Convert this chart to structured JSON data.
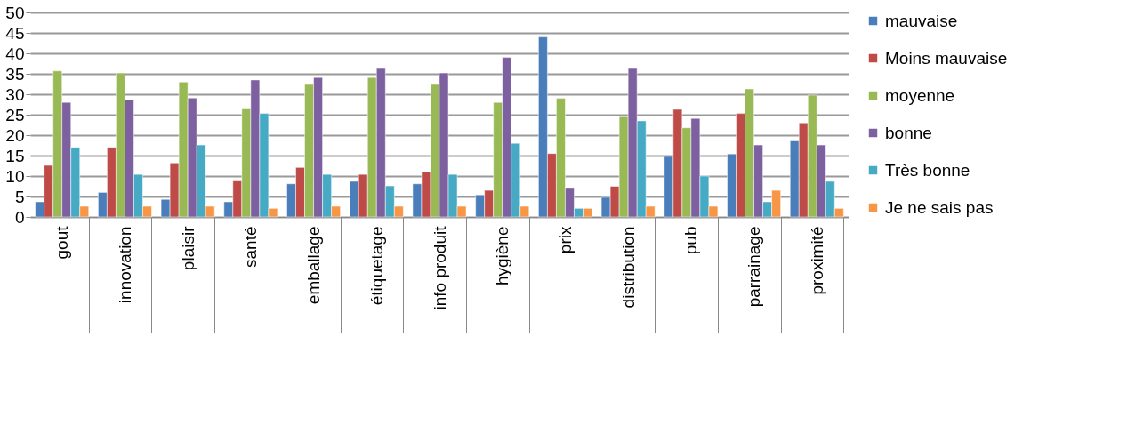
{
  "chart_data": {
    "type": "bar",
    "categories": [
      "gout",
      "innovation",
      "plaisir",
      "santé",
      "emballage",
      "étiquetage",
      "info produit",
      "hygiène",
      "prix",
      "distribution",
      "pub",
      "parrainage",
      "proximité"
    ],
    "series": [
      {
        "name": "mauvaise",
        "color": "#4a7ebb",
        "values": [
          3.7,
          6,
          4.3,
          3.7,
          8.1,
          8.7,
          8.1,
          5.4,
          44,
          4.8,
          14.8,
          15.4,
          18.6
        ]
      },
      {
        "name": "Moins  mauvaise",
        "color": "#be4b48",
        "values": [
          12.6,
          17,
          13.2,
          8.8,
          12.1,
          10.4,
          11,
          6.5,
          15.5,
          7.5,
          26.3,
          25.3,
          23
        ]
      },
      {
        "name": "moyenne",
        "color": "#98b954",
        "values": [
          35.7,
          35.2,
          33,
          26.4,
          32.4,
          34.1,
          32.4,
          28,
          29,
          24.5,
          21.8,
          31.3,
          29.8
        ]
      },
      {
        "name": "bonne",
        "color": "#7d60a0",
        "values": [
          28,
          28.6,
          29.1,
          33.5,
          34.1,
          36.3,
          35.2,
          39,
          7,
          36.3,
          24.1,
          17.6,
          17.6
        ]
      },
      {
        "name": "Très bonne",
        "color": "#46aac5",
        "values": [
          17,
          10.4,
          17.6,
          25.3,
          10.4,
          7.6,
          10.4,
          18,
          2.1,
          23.5,
          10,
          3.7,
          8.7
        ]
      },
      {
        "name": "Je ne sais pas",
        "color": "#f79646",
        "values": [
          2.6,
          2.6,
          2.6,
          2.1,
          2.6,
          2.6,
          2.6,
          2.6,
          2.1,
          2.6,
          2.6,
          6.5,
          2.1
        ]
      }
    ],
    "ylim": [
      0,
      50
    ],
    "yticks": [
      0,
      5,
      10,
      15,
      20,
      25,
      30,
      35,
      40,
      45,
      50
    ],
    "grid": "y",
    "legend": "right"
  }
}
